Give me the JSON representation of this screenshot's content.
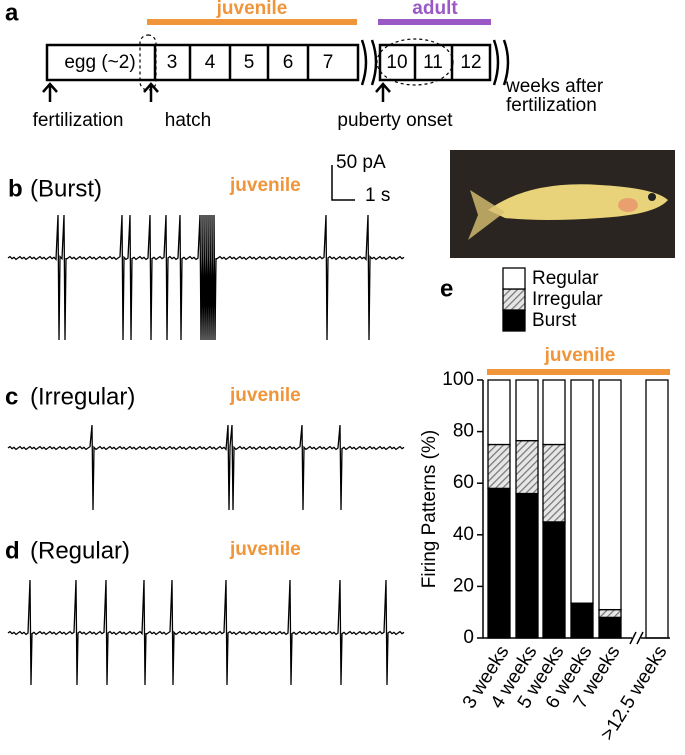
{
  "panel_a": {
    "letter": "a",
    "juvenile": "juvenile",
    "adult": "adult",
    "boxes": [
      "egg (~2)",
      "3",
      "4",
      "5",
      "6",
      "7",
      "10",
      "11",
      "12"
    ],
    "markers": [
      "fertilization",
      "hatch",
      "puberty onset"
    ],
    "axis_note": [
      "weeks after",
      "fertilization"
    ]
  },
  "panel_b": {
    "letter": "b",
    "pattern": "(Burst)",
    "stage": "juvenile",
    "scale_y": "50 pA",
    "scale_x": "1 s"
  },
  "panel_c": {
    "letter": "c",
    "pattern": "(Irregular)",
    "stage": "juvenile"
  },
  "panel_d": {
    "letter": "d",
    "pattern": "(Regular)",
    "stage": "juvenile"
  },
  "chart_data": {
    "type": "bar",
    "stacked": true,
    "panel_label": "e",
    "ylabel": "Firing Patterns (%)",
    "annotation": "juvenile",
    "categories": [
      "3 weeks",
      "4 weeks",
      "5 weeks",
      "6 weeks",
      "7 weeks",
      ">12.5 weeks"
    ],
    "series": [
      {
        "name": "Burst",
        "color": "#000000",
        "values": [
          58,
          56,
          45,
          13.5,
          8,
          0
        ]
      },
      {
        "name": "Irregular",
        "color": "#777777",
        "hatch": true,
        "values": [
          17,
          20.5,
          30,
          0,
          3,
          0
        ]
      },
      {
        "name": "Regular",
        "color": "#ffffff",
        "values": [
          25,
          23.5,
          25,
          86.5,
          89,
          100
        ]
      }
    ],
    "ylim": [
      0,
      100
    ],
    "yticks": [
      0,
      20,
      40,
      60,
      80,
      100
    ],
    "legend": "top"
  }
}
